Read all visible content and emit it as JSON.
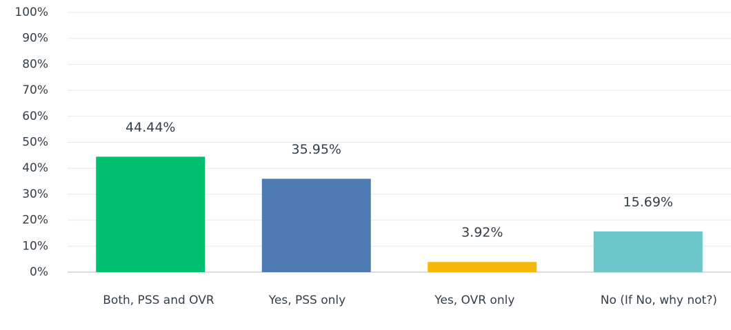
{
  "chart_data": {
    "type": "bar",
    "categories": [
      "Both, PSS and OVR",
      "Yes, PSS only",
      "Yes, OVR only",
      "No (If No, why not?)"
    ],
    "values": [
      44.44,
      35.95,
      3.92,
      15.69
    ],
    "value_labels": [
      "44.44%",
      "35.95%",
      "3.92%",
      "15.69%"
    ],
    "colors": [
      "#00bf6f",
      "#4f7bb5",
      "#f5b90b",
      "#6cc7cb"
    ],
    "ylim": [
      0,
      100
    ],
    "yticks": [
      {
        "value": 0,
        "label": "0%"
      },
      {
        "value": 10,
        "label": "10%"
      },
      {
        "value": 20,
        "label": "20%"
      },
      {
        "value": 30,
        "label": "30%"
      },
      {
        "value": 40,
        "label": "40%"
      },
      {
        "value": 50,
        "label": "50%"
      },
      {
        "value": 60,
        "label": "60%"
      },
      {
        "value": 70,
        "label": "70%"
      },
      {
        "value": 80,
        "label": "80%"
      },
      {
        "value": 90,
        "label": "90%"
      },
      {
        "value": 100,
        "label": "100%"
      }
    ],
    "grid": true
  }
}
